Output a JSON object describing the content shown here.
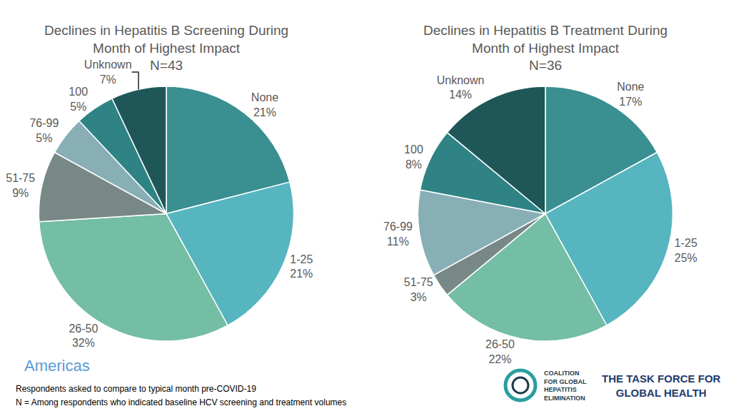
{
  "chart_data": [
    {
      "type": "pie",
      "title": "Declines in Hepatitis B Screening During\nMonth of Highest Impact",
      "subtitle": "N=43",
      "categories": [
        "None",
        "1-25",
        "26-50",
        "51-75",
        "76-99",
        "100",
        "Unknown"
      ],
      "values": [
        21,
        21,
        32,
        9,
        5,
        5,
        7
      ],
      "value_labels": [
        "21%",
        "21%",
        "32%",
        "9%",
        "5%",
        "5%",
        "7%"
      ],
      "colors": [
        "#3a8f90",
        "#56b5bf",
        "#73bea5",
        "#778887",
        "#88aeb6",
        "#2f8385",
        "#1f5759"
      ],
      "data_labels": true
    },
    {
      "type": "pie",
      "title": "Declines in Hepatitis B Treatment During\nMonth of Highest Impact",
      "subtitle": "N=36",
      "categories": [
        "None",
        "1-25",
        "26-50",
        "51-75",
        "76-99",
        "100",
        "Unknown"
      ],
      "values": [
        17,
        25,
        22,
        3,
        11,
        8,
        14
      ],
      "value_labels": [
        "17%",
        "25%",
        "22%",
        "3%",
        "11%",
        "8%",
        "14%"
      ],
      "colors": [
        "#3a8f90",
        "#56b5bf",
        "#73bea5",
        "#778887",
        "#88aeb6",
        "#2f8385",
        "#1f5759"
      ],
      "data_labels": true
    }
  ],
  "region": "Americas",
  "notes": [
    "Respondents asked to compare to typical month pre-COVID-19",
    "N = Among respondents who indicated baseline HCV screening and treatment volumes"
  ],
  "logos": [
    {
      "lines": [
        "COALITION",
        "FOR GLOBAL",
        "HEPATITIS",
        "ELIMINATION"
      ]
    },
    {
      "lines": [
        "THE TASK FORCE FOR",
        "GLOBAL HEALTH"
      ]
    }
  ]
}
